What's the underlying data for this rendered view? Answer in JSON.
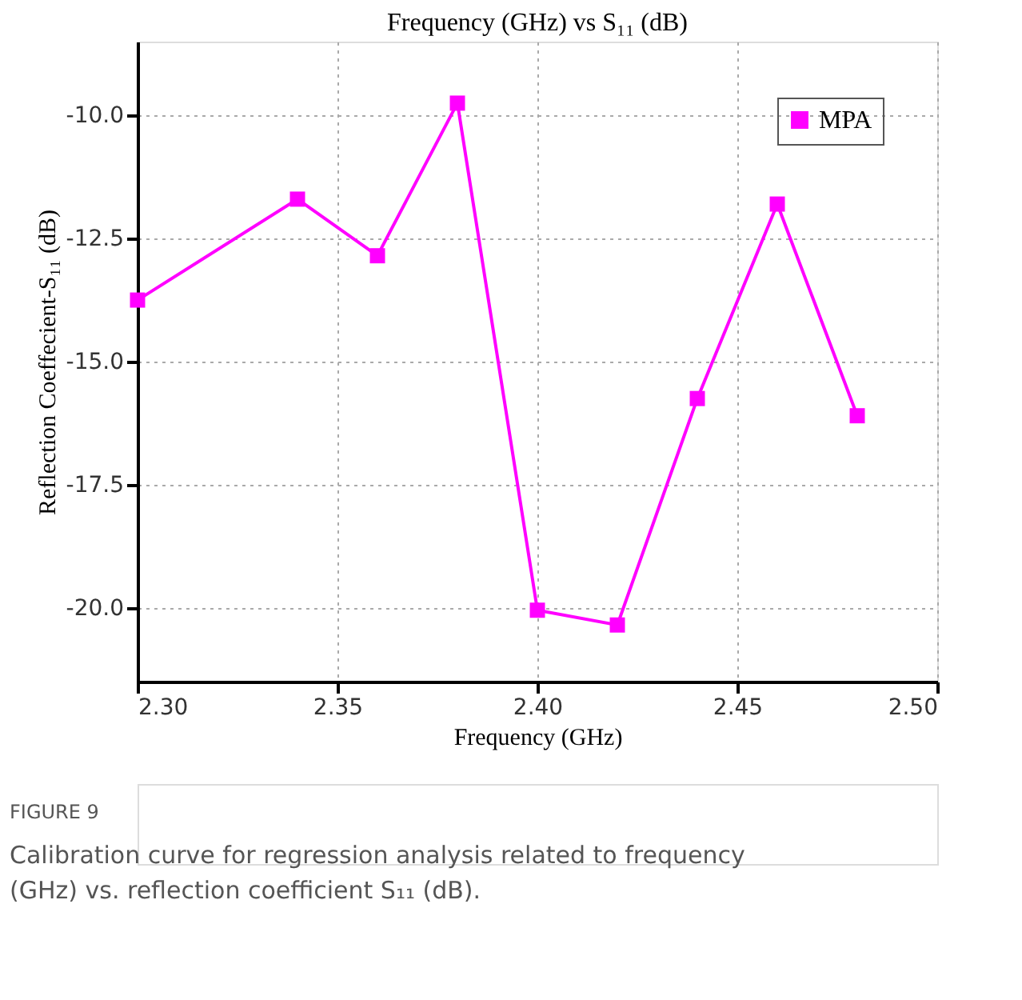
{
  "chart_data": {
    "type": "line",
    "title": "Frequency (GHz) vs S₁₁ (dB)",
    "xlabel": "Frequency (GHz)",
    "ylabel": "Reflection Coeffecient-S₁₁ (dB)",
    "x": [
      2.3,
      2.34,
      2.36,
      2.38,
      2.4,
      2.42,
      2.44,
      2.46,
      2.48
    ],
    "series": [
      {
        "name": "MPA",
        "color": "#ff00ff",
        "values": [
          -13.75,
          -11.7,
          -12.85,
          -9.75,
          -20.05,
          -20.35,
          -15.75,
          -11.8,
          -16.1
        ]
      }
    ],
    "xlim": [
      2.3,
      2.5
    ],
    "ylim": [
      -21.5,
      -8.5
    ],
    "xticks": [
      {
        "value": 2.3,
        "label": "2.30"
      },
      {
        "value": 2.35,
        "label": "2.35"
      },
      {
        "value": 2.4,
        "label": "2.40"
      },
      {
        "value": 2.45,
        "label": "2.45"
      },
      {
        "value": 2.5,
        "label": "2.50"
      }
    ],
    "yticks": [
      {
        "value": -20,
        "label": "-20.0"
      },
      {
        "value": -17.5,
        "label": "-17.5"
      },
      {
        "value": -15,
        "label": "-15.0"
      },
      {
        "value": -12.5,
        "label": "-12.5"
      },
      {
        "value": -10,
        "label": "-10.0"
      }
    ],
    "grid": true,
    "legend": "top right",
    "marker": "square",
    "line_style": "solid",
    "annotations": [
      "FIGURE 9",
      "Calibration curve for regression analysis related to frequency (GHz) vs. reflection coefficient S₁₁ (dB)."
    ]
  }
}
